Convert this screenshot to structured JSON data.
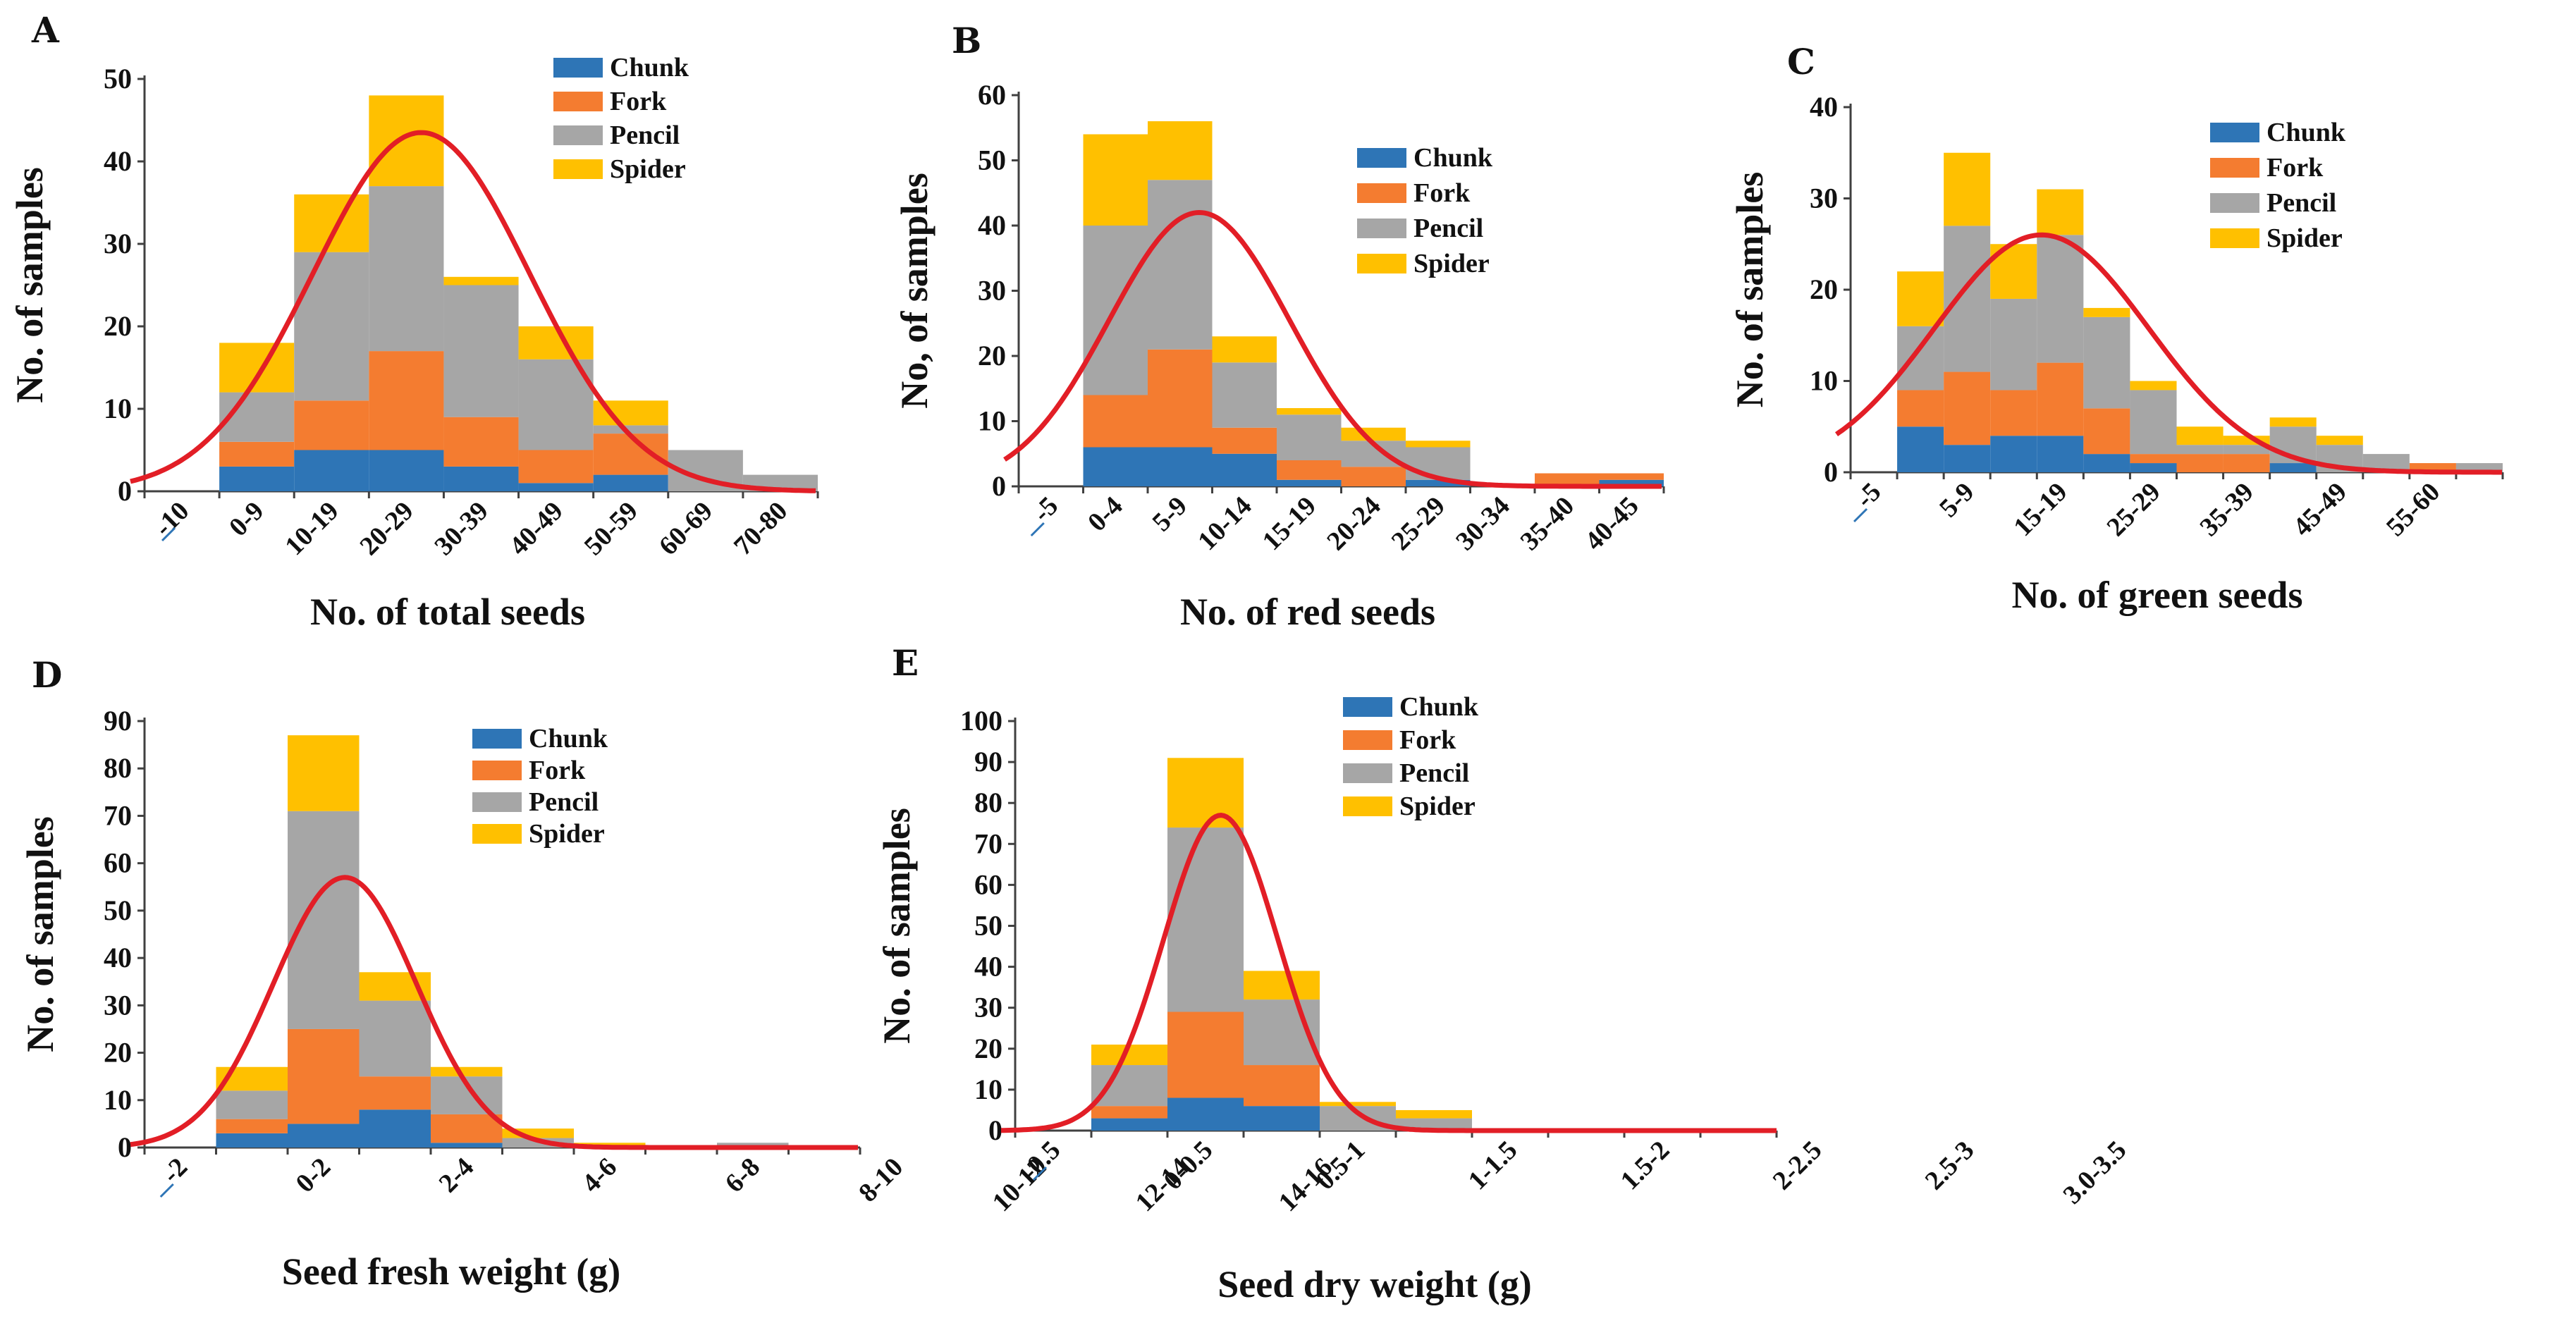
{
  "colors": {
    "Chunk": "#2e75b6",
    "Fork": "#f47c30",
    "Pencil": "#a6a6a6",
    "Spider": "#ffc000",
    "curve": "#e21e26"
  },
  "chart_data": [
    {
      "panel": "A",
      "type": "bar",
      "stacked": true,
      "title": "",
      "xlabel": "No. of total seeds",
      "ylabel": "No. of samples",
      "ylim": [
        0,
        50
      ],
      "yticks": [
        0,
        10,
        20,
        30,
        40,
        50
      ],
      "legend": [
        "Chunk",
        "Fork",
        "Pencil",
        "Spider"
      ],
      "legend_position": "top-right",
      "tick_labels": [
        "-10",
        "0-9",
        "10-19",
        "20-29",
        "30-39",
        "40-49",
        "50-59",
        "60-69",
        "70-80"
      ],
      "categories": [
        "0-9",
        "10-19",
        "20-29",
        "30-39",
        "40-49",
        "50-59",
        "60-69",
        "70-80"
      ],
      "series": [
        {
          "name": "Chunk",
          "values": [
            3,
            5,
            5,
            3,
            1,
            2,
            0,
            0
          ]
        },
        {
          "name": "Fork",
          "values": [
            3,
            6,
            12,
            6,
            4,
            5,
            0,
            0
          ]
        },
        {
          "name": "Pencil",
          "values": [
            6,
            18,
            20,
            16,
            11,
            1,
            5,
            2
          ]
        },
        {
          "name": "Spider",
          "values": [
            6,
            7,
            11,
            1,
            4,
            3,
            0,
            0
          ]
        }
      ],
      "fit_curve": {
        "type": "normal",
        "peak": 43.5,
        "peak_category": 2.7,
        "spread_categories": 1.45
      }
    },
    {
      "panel": "B",
      "type": "bar",
      "stacked": true,
      "title": "",
      "xlabel": "No. of red seeds",
      "ylabel": "No, of samples",
      "ylim": [
        0,
        60
      ],
      "yticks": [
        0,
        10,
        20,
        30,
        40,
        50,
        60
      ],
      "legend": [
        "Chunk",
        "Fork",
        "Pencil",
        "Spider"
      ],
      "legend_position": "top-right",
      "tick_labels": [
        "-5",
        "0-4",
        "5-9",
        "10-14",
        "15-19",
        "20-24",
        "25-29",
        "30-34",
        "35-40",
        "40-45"
      ],
      "categories": [
        "0-4",
        "5-9",
        "10-14",
        "15-19",
        "20-24",
        "25-29",
        "30-34",
        "35-40",
        "40-45"
      ],
      "series": [
        {
          "name": "Chunk",
          "values": [
            6,
            6,
            5,
            1,
            0,
            1,
            0,
            0,
            1
          ]
        },
        {
          "name": "Fork",
          "values": [
            8,
            15,
            4,
            3,
            3,
            0,
            0,
            2,
            1
          ]
        },
        {
          "name": "Pencil",
          "values": [
            26,
            26,
            10,
            7,
            4,
            5,
            0,
            0,
            0
          ]
        },
        {
          "name": "Spider",
          "values": [
            14,
            9,
            4,
            1,
            2,
            1,
            0,
            0,
            0
          ]
        }
      ],
      "fit_curve": {
        "type": "normal",
        "peak": 42,
        "peak_category": 1.8,
        "spread_categories": 1.4
      }
    },
    {
      "panel": "C",
      "type": "bar",
      "stacked": true,
      "title": "",
      "xlabel": "No. of green seeds",
      "ylabel": "No. of samples",
      "ylim": [
        0,
        40
      ],
      "yticks": [
        0,
        10,
        20,
        30,
        40
      ],
      "legend": [
        "Chunk",
        "Fork",
        "Pencil",
        "Spider"
      ],
      "legend_position": "top-right",
      "tick_labels": [
        "-5",
        "5-9",
        "15-19",
        "25-29",
        "35-39",
        "45-49",
        "55-60"
      ],
      "categories": [
        "0-4",
        "5-9",
        "10-14",
        "15-19",
        "20-24",
        "25-29",
        "30-34",
        "35-39",
        "40-44",
        "45-49",
        "50-54",
        "55-60",
        "60-64"
      ],
      "series": [
        {
          "name": "Chunk",
          "values": [
            5,
            3,
            4,
            4,
            2,
            1,
            0,
            0,
            1,
            0,
            0,
            0,
            0
          ]
        },
        {
          "name": "Fork",
          "values": [
            4,
            8,
            5,
            8,
            5,
            1,
            2,
            2,
            0,
            0,
            0,
            1,
            0
          ]
        },
        {
          "name": "Pencil",
          "values": [
            7,
            16,
            10,
            14,
            10,
            7,
            1,
            1,
            4,
            3,
            2,
            0,
            1
          ]
        },
        {
          "name": "Spider",
          "values": [
            6,
            8,
            6,
            5,
            1,
            1,
            2,
            1,
            1,
            1,
            0,
            0,
            0
          ]
        }
      ],
      "fit_curve": {
        "type": "normal",
        "peak": 26,
        "peak_category": 3.1,
        "spread_categories": 2.3
      }
    },
    {
      "panel": "D",
      "type": "bar",
      "stacked": true,
      "title": "",
      "xlabel": "Seed fresh weight (g)",
      "ylabel": "No. of samples",
      "ylim": [
        0,
        90
      ],
      "yticks": [
        0,
        10,
        20,
        30,
        40,
        50,
        60,
        70,
        80,
        90
      ],
      "legend": [
        "Chunk",
        "Fork",
        "Pencil",
        "Spider"
      ],
      "legend_position": "top-right",
      "tick_labels": [
        "-2",
        "0-2",
        "2-4",
        "4-6",
        "6-8",
        "8-10",
        "10-12",
        "12-14",
        "14-16"
      ],
      "categories": [
        "0-2",
        "2-4",
        "4-6",
        "6-8",
        "8-10",
        "10-12",
        "12-14",
        "14-16",
        "16-18"
      ],
      "series": [
        {
          "name": "Chunk",
          "values": [
            3,
            5,
            8,
            1,
            0,
            0,
            0,
            0,
            0
          ]
        },
        {
          "name": "Fork",
          "values": [
            3,
            20,
            7,
            6,
            0,
            0,
            0,
            0,
            0
          ]
        },
        {
          "name": "Pencil",
          "values": [
            6,
            46,
            16,
            8,
            2,
            0,
            0,
            1,
            0
          ]
        },
        {
          "name": "Spider",
          "values": [
            5,
            16,
            6,
            2,
            2,
            1,
            0,
            0,
            0
          ]
        }
      ],
      "fit_curve": {
        "type": "normal",
        "peak": 57,
        "peak_category": 1.8,
        "spread_categories": 1.0
      }
    },
    {
      "panel": "E",
      "type": "bar",
      "stacked": true,
      "title": "",
      "xlabel": "Seed dry weight (g)",
      "ylabel": "No. of samples",
      "ylim": [
        0,
        100
      ],
      "yticks": [
        0,
        10,
        20,
        30,
        40,
        50,
        60,
        70,
        80,
        90,
        100
      ],
      "legend": [
        "Chunk",
        "Fork",
        "Pencil",
        "Spider"
      ],
      "legend_position": "top-left",
      "tick_labels": [
        "-0.5",
        "0-0.5",
        "0.5-1",
        "1-1.5",
        "1.5-2",
        "2-2.5",
        "2.5-3",
        "3.0-3.5"
      ],
      "categories": [
        "0-0.5",
        "0.5-1",
        "1-1.5",
        "1.5-2",
        "2-2.5",
        "2.5-3",
        "3.0-3.5",
        "3.5-4",
        "4-4.5"
      ],
      "series": [
        {
          "name": "Chunk",
          "values": [
            3,
            8,
            6,
            0,
            0,
            0,
            0,
            0,
            0
          ]
        },
        {
          "name": "Fork",
          "values": [
            3,
            21,
            10,
            0,
            0,
            0,
            0,
            0,
            0
          ]
        },
        {
          "name": "Pencil",
          "values": [
            10,
            45,
            16,
            6,
            3,
            0,
            0,
            0,
            0
          ]
        },
        {
          "name": "Spider",
          "values": [
            5,
            17,
            7,
            1,
            2,
            0,
            0,
            0,
            0
          ]
        }
      ],
      "fit_curve": {
        "type": "normal",
        "peak": 77,
        "peak_category": 1.7,
        "spread_categories": 0.75
      }
    }
  ]
}
